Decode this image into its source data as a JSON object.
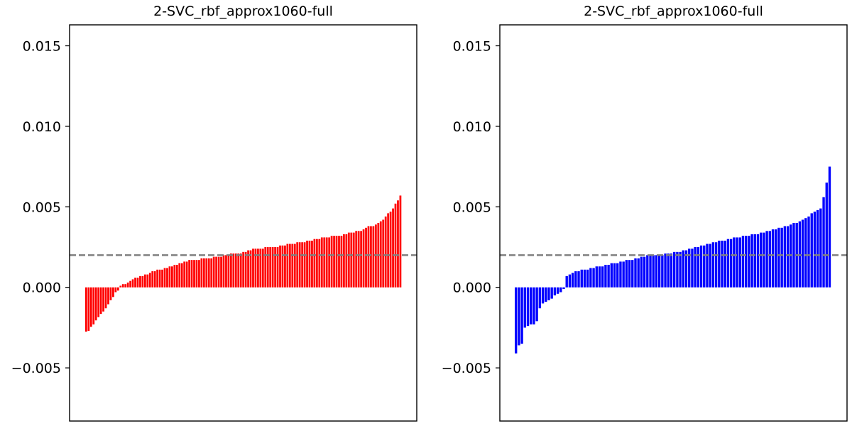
{
  "chart_data": [
    {
      "type": "bar",
      "title": "2-SVC_rbf_approx1060-full",
      "xlabel": "",
      "ylabel": "",
      "ylim": [
        -0.0083,
        0.0163
      ],
      "yticks": [
        -0.005,
        0.0,
        0.005,
        0.01,
        0.015
      ],
      "ytick_labels": [
        "−0.005",
        "0.000",
        "0.005",
        "0.010",
        "0.015"
      ],
      "bar_color": "#ff0000",
      "reference_line": {
        "y": 0.002,
        "color": "#808080",
        "style": "dashed"
      },
      "x_ticks_shown": false,
      "grid": false,
      "values": [
        -0.00275,
        -0.0027,
        -0.00245,
        -0.0023,
        -0.00205,
        -0.00185,
        -0.00165,
        -0.0015,
        -0.0013,
        -0.00105,
        -0.0008,
        -0.0006,
        -0.0003,
        -0.0002,
        0.0001,
        0.0002,
        0.0002,
        0.0003,
        0.0004,
        0.0005,
        0.0006,
        0.0006,
        0.0007,
        0.0007,
        0.0008,
        0.0008,
        0.0009,
        0.001,
        0.001,
        0.0011,
        0.0011,
        0.0011,
        0.0012,
        0.0012,
        0.0013,
        0.0013,
        0.0014,
        0.0014,
        0.0015,
        0.0015,
        0.0016,
        0.0016,
        0.0017,
        0.0017,
        0.0017,
        0.0017,
        0.0017,
        0.0018,
        0.0018,
        0.0018,
        0.0018,
        0.0018,
        0.0019,
        0.0019,
        0.0019,
        0.0019,
        0.002,
        0.002,
        0.002,
        0.0021,
        0.0021,
        0.0021,
        0.0021,
        0.0021,
        0.0022,
        0.0022,
        0.0023,
        0.0023,
        0.0024,
        0.0024,
        0.0024,
        0.0024,
        0.0024,
        0.0025,
        0.0025,
        0.0025,
        0.0025,
        0.0025,
        0.0025,
        0.0026,
        0.0026,
        0.0026,
        0.0027,
        0.0027,
        0.0027,
        0.0027,
        0.0028,
        0.0028,
        0.0028,
        0.0028,
        0.0029,
        0.0029,
        0.0029,
        0.003,
        0.003,
        0.003,
        0.0031,
        0.0031,
        0.0031,
        0.0031,
        0.0032,
        0.0032,
        0.0032,
        0.0032,
        0.0032,
        0.0033,
        0.0033,
        0.0034,
        0.0034,
        0.0034,
        0.0035,
        0.0035,
        0.0035,
        0.0036,
        0.0037,
        0.0038,
        0.0038,
        0.0038,
        0.0039,
        0.004,
        0.0041,
        0.0042,
        0.0044,
        0.0046,
        0.0047,
        0.0049,
        0.0052,
        0.0054,
        0.0057
      ]
    },
    {
      "type": "bar",
      "title": "2-SVC_rbf_approx1060-full",
      "xlabel": "",
      "ylabel": "",
      "ylim": [
        -0.0083,
        0.0163
      ],
      "yticks": [
        -0.005,
        0.0,
        0.005,
        0.01,
        0.015
      ],
      "ytick_labels": [
        "−0.005",
        "0.000",
        "0.005",
        "0.010",
        "0.015"
      ],
      "bar_color": "#0000ff",
      "reference_line": {
        "y": 0.002,
        "color": "#808080",
        "style": "dashed"
      },
      "x_ticks_shown": false,
      "grid": false,
      "values": [
        -0.0041,
        -0.0036,
        -0.0035,
        -0.0025,
        -0.0024,
        -0.0023,
        -0.0023,
        -0.0021,
        -0.0013,
        -0.001,
        -0.0009,
        -0.0008,
        -0.0007,
        -0.0005,
        -0.0004,
        -0.0003,
        -0.0001,
        0.0007,
        0.0008,
        0.0009,
        0.001,
        0.001,
        0.0011,
        0.0011,
        0.0011,
        0.0012,
        0.0012,
        0.0013,
        0.0013,
        0.0013,
        0.0014,
        0.0014,
        0.0015,
        0.0015,
        0.0015,
        0.0016,
        0.0016,
        0.0017,
        0.0017,
        0.0017,
        0.0018,
        0.0018,
        0.0019,
        0.0019,
        0.002,
        0.002,
        0.002,
        0.002,
        0.002,
        0.002,
        0.0021,
        0.0021,
        0.0021,
        0.0022,
        0.0022,
        0.0022,
        0.0023,
        0.0023,
        0.0024,
        0.0024,
        0.0025,
        0.0025,
        0.0026,
        0.0026,
        0.0027,
        0.0027,
        0.0028,
        0.0028,
        0.0029,
        0.0029,
        0.0029,
        0.003,
        0.003,
        0.0031,
        0.0031,
        0.0031,
        0.0032,
        0.0032,
        0.0032,
        0.0033,
        0.0033,
        0.0033,
        0.0034,
        0.0034,
        0.0035,
        0.0035,
        0.0036,
        0.0036,
        0.0037,
        0.0037,
        0.0038,
        0.0038,
        0.0039,
        0.004,
        0.004,
        0.0041,
        0.0042,
        0.0043,
        0.0044,
        0.0046,
        0.0047,
        0.0048,
        0.0049,
        0.0056,
        0.0065,
        0.0075
      ]
    }
  ]
}
